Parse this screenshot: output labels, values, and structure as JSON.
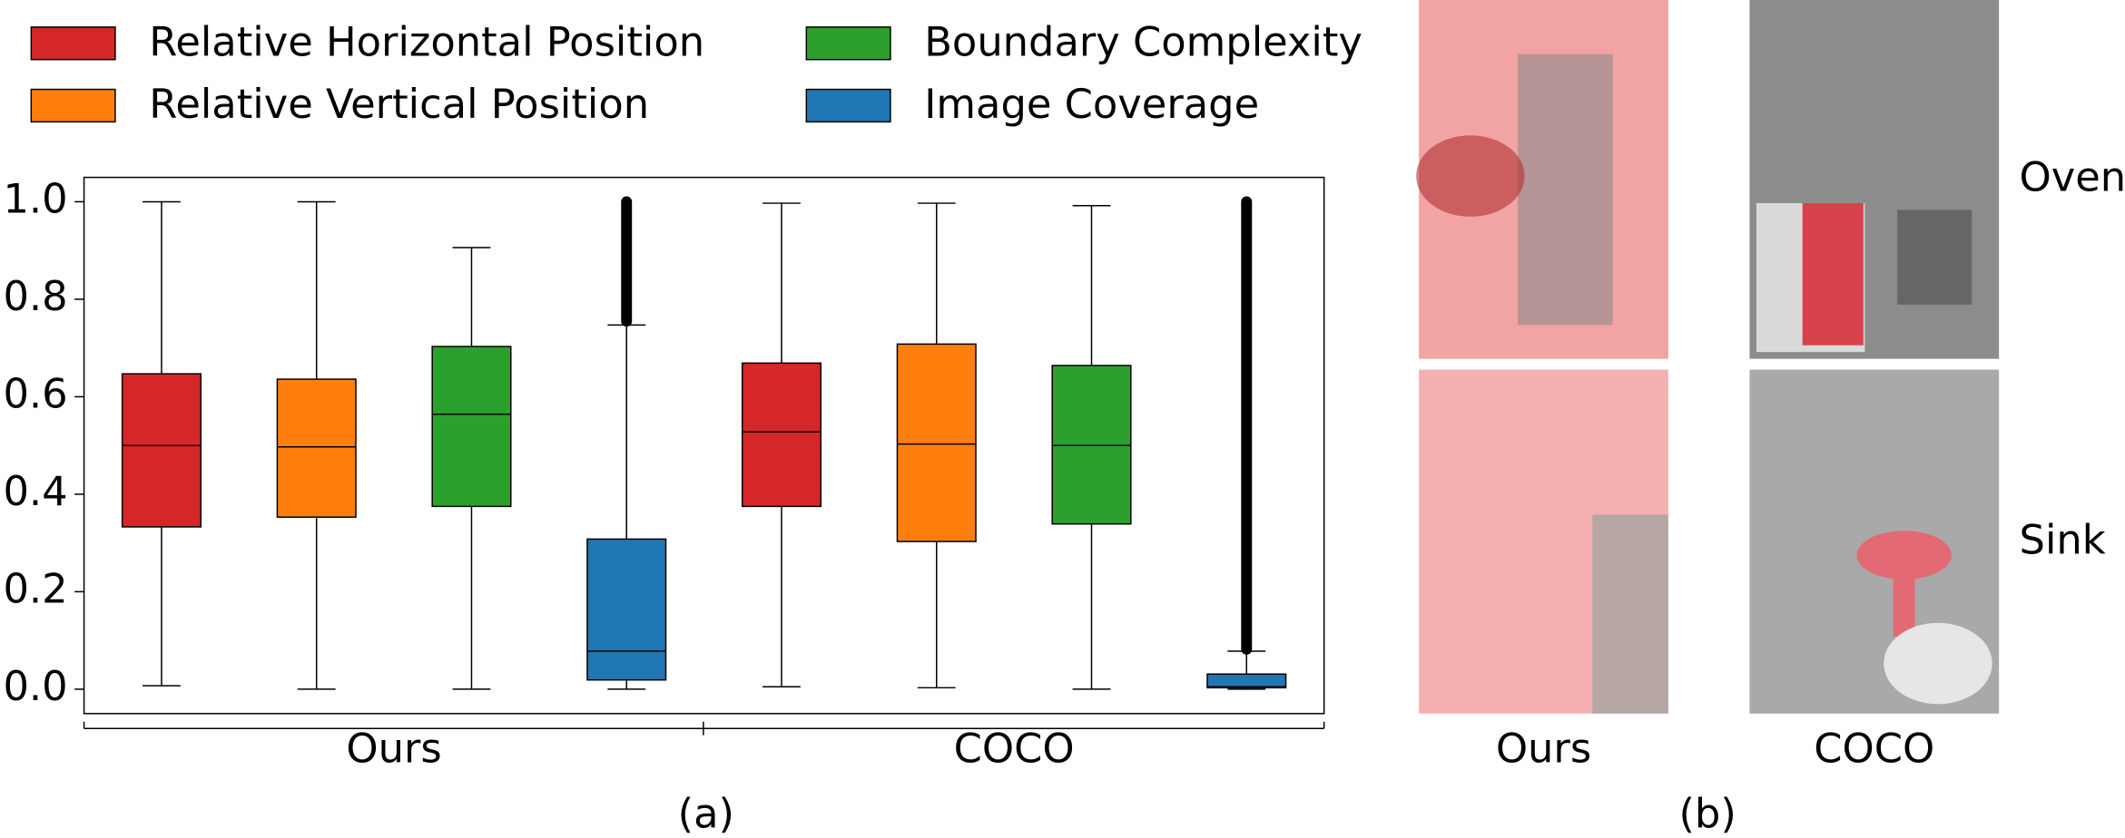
{
  "chart_data": {
    "type": "box",
    "categories": [
      "Ours",
      "COCO"
    ],
    "series": [
      {
        "name": "Relative Horizontal Position",
        "color": "#d62728",
        "values": [
          {
            "low": 0.007,
            "q1": 0.333,
            "median": 0.5,
            "q3": 0.647,
            "high": 1.0
          },
          {
            "low": 0.005,
            "q1": 0.375,
            "median": 0.528,
            "q3": 0.669,
            "high": 0.997
          }
        ]
      },
      {
        "name": "Relative Vertical Position",
        "color": "#ff7f0e",
        "values": [
          {
            "low": 0.0,
            "q1": 0.353,
            "median": 0.497,
            "q3": 0.636,
            "high": 1.0
          },
          {
            "low": 0.003,
            "q1": 0.303,
            "median": 0.503,
            "q3": 0.708,
            "high": 0.997
          }
        ]
      },
      {
        "name": "Boundary Complexity",
        "color": "#2ca02c",
        "values": [
          {
            "low": 0.0,
            "q1": 0.375,
            "median": 0.564,
            "q3": 0.703,
            "high": 0.906
          },
          {
            "low": 0.0,
            "q1": 0.339,
            "median": 0.5,
            "q3": 0.664,
            "high": 0.992
          }
        ]
      },
      {
        "name": "Image Coverage",
        "color": "#1f77b4",
        "values": [
          {
            "low": 0.0,
            "q1": 0.019,
            "median": 0.078,
            "q3": 0.308,
            "high": 0.747,
            "outlier_range": [
              0.755,
              1.0
            ]
          },
          {
            "low": 0.0,
            "q1": 0.003,
            "median": 0.005,
            "q3": 0.031,
            "high": 0.078,
            "outlier_range": [
              0.082,
              1.0
            ]
          }
        ]
      }
    ],
    "ylim": [
      -0.05,
      1.05
    ],
    "yticks": [
      {
        "value": 0,
        "label": "0.0"
      },
      0.2,
      0.4,
      0.6,
      0.8,
      {
        "value": 1,
        "label": "1.0"
      }
    ],
    "legend": "top"
  },
  "captions": [
    "(a)",
    "(b)"
  ],
  "panel_b": {
    "columns": [
      "Ours",
      "COCO"
    ],
    "rows": [
      "Oven",
      "Sink"
    ]
  }
}
